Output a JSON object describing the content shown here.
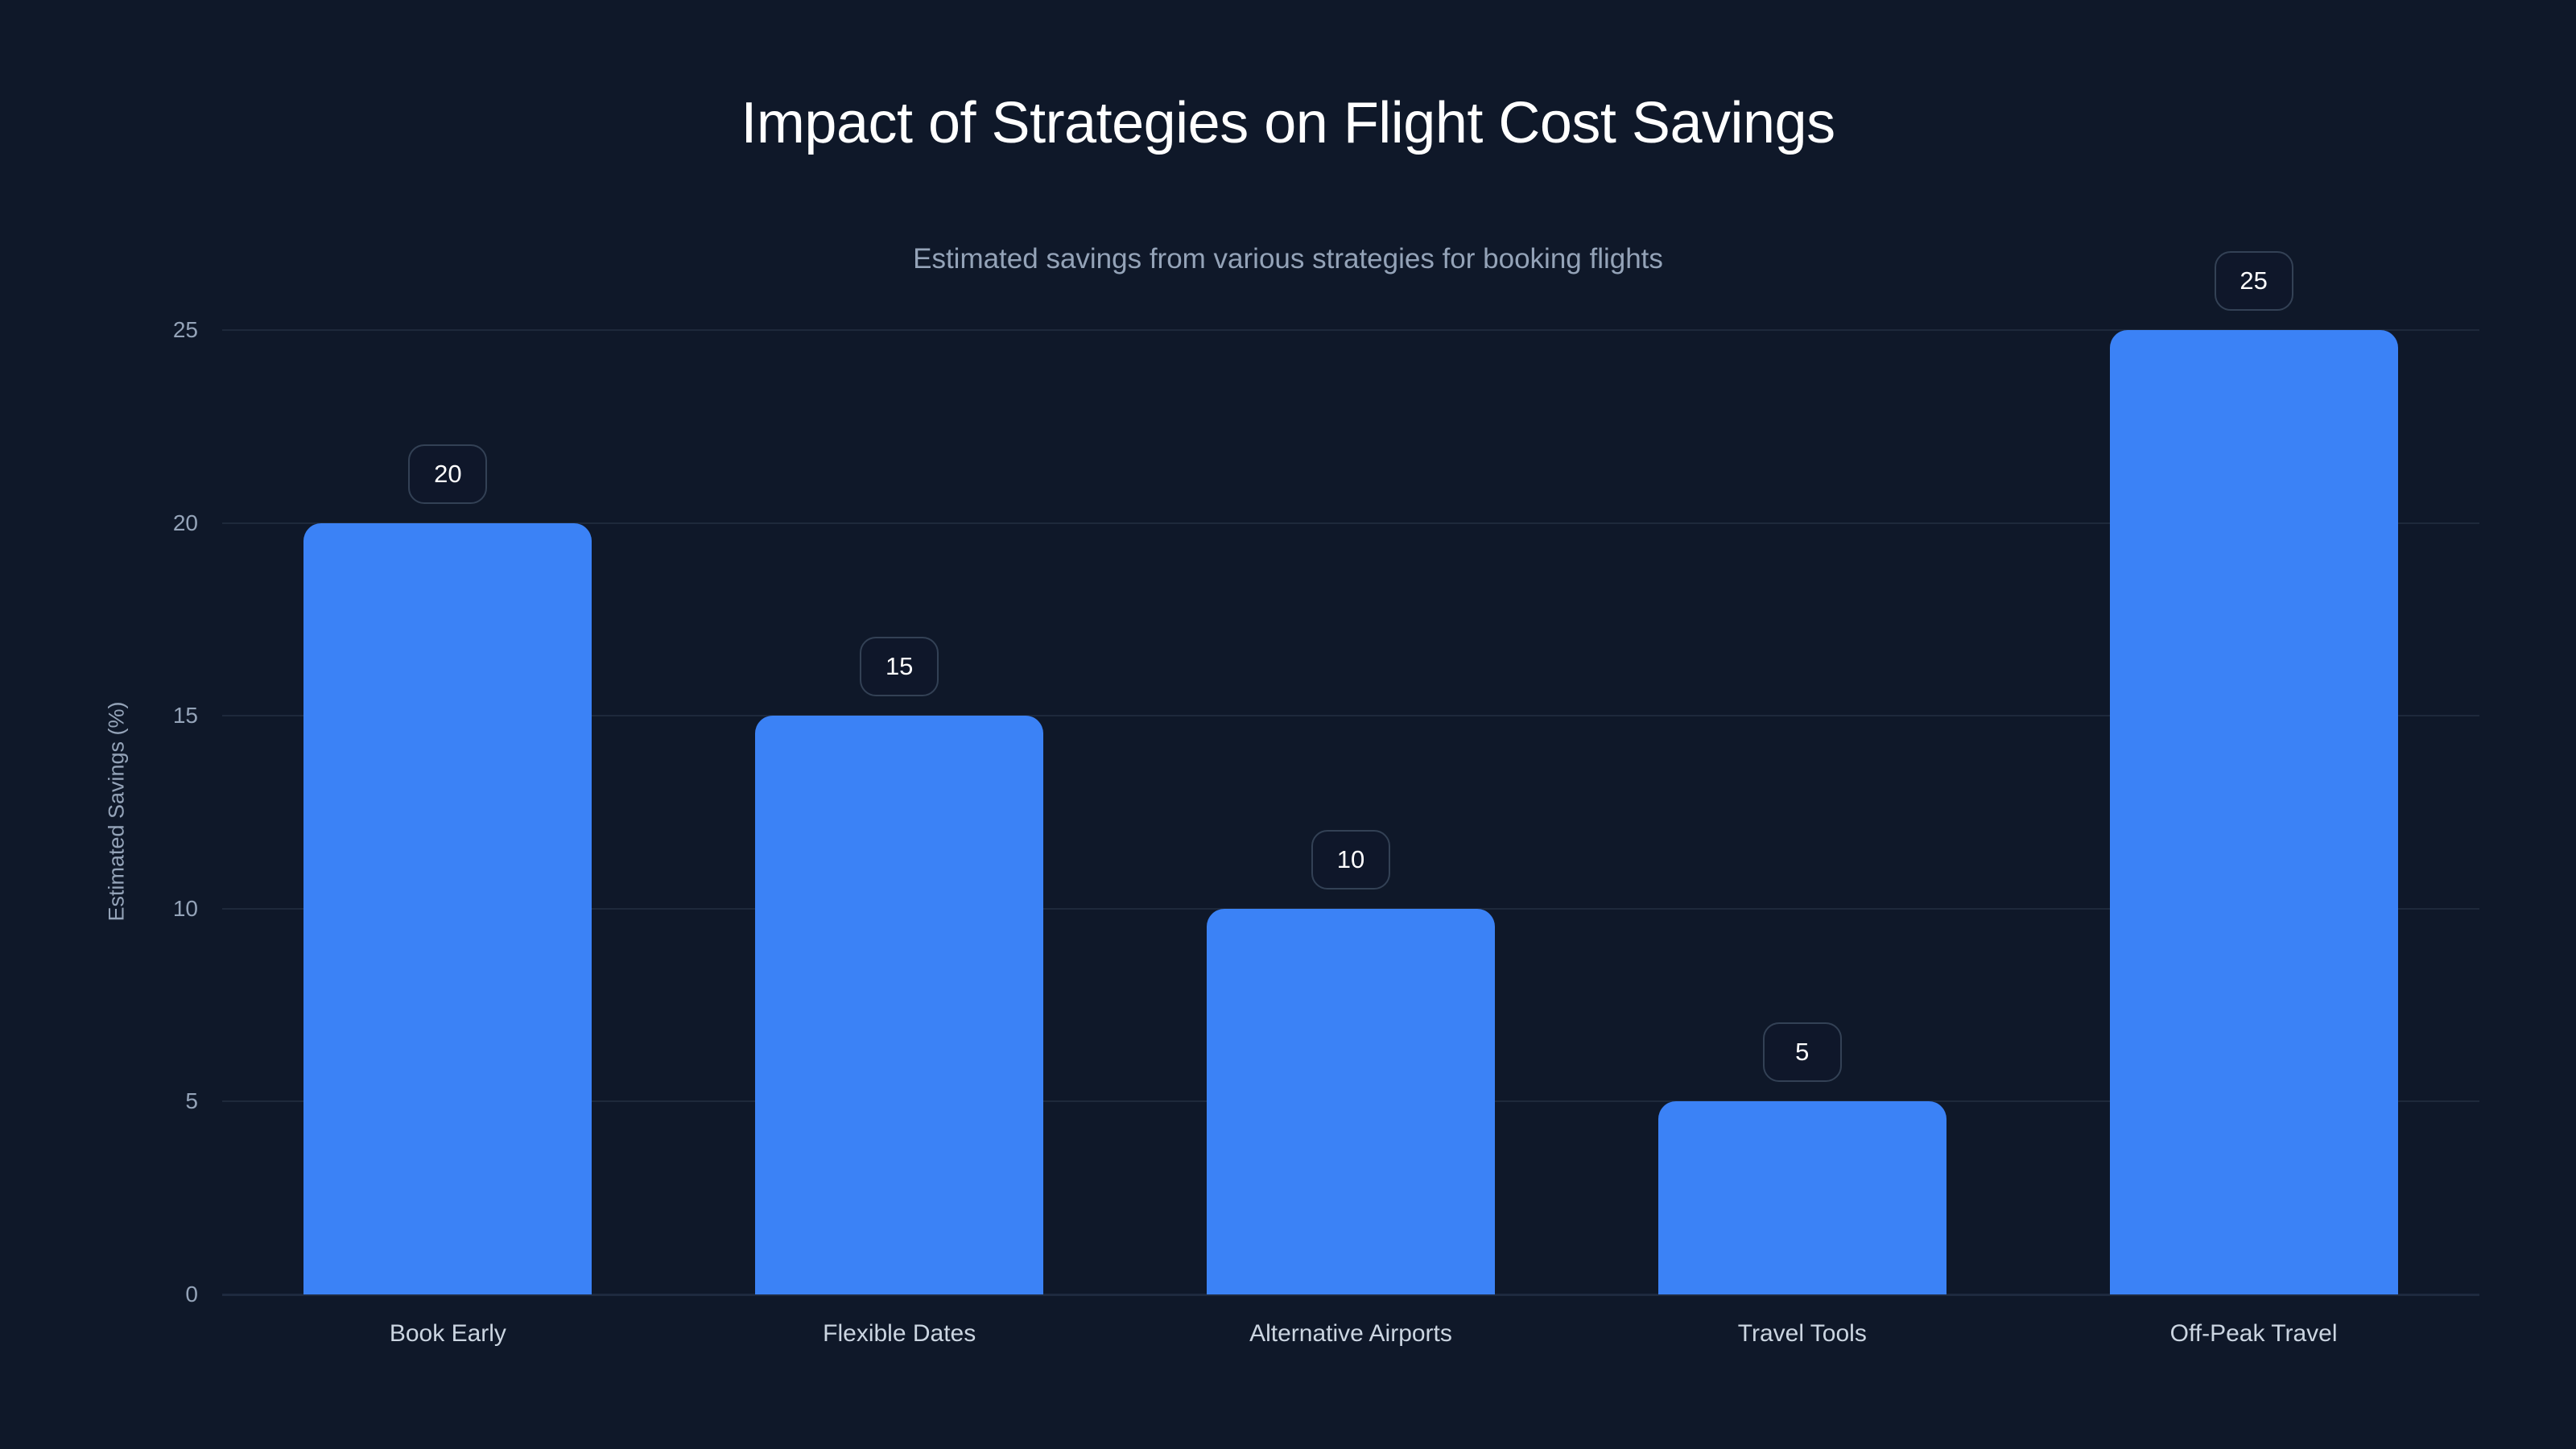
{
  "chart_data": {
    "type": "bar",
    "title": "Impact of Strategies on Flight Cost Savings",
    "subtitle": "Estimated savings from various strategies for booking flights",
    "xlabel": "",
    "ylabel": "Estimated Savings (%)",
    "categories": [
      "Book Early",
      "Flexible Dates",
      "Alternative Airports",
      "Travel Tools",
      "Off-Peak Travel"
    ],
    "values": [
      20,
      15,
      10,
      5,
      25
    ],
    "value_labels": [
      "20",
      "15",
      "10",
      "5",
      "25"
    ],
    "ylim": [
      0,
      25
    ],
    "yticks": [
      0,
      5,
      10,
      15,
      20,
      25
    ],
    "ytick_labels": [
      "0",
      "5",
      "10",
      "15",
      "20",
      "25"
    ],
    "grid": true,
    "legend": null,
    "colors": {
      "bar": "#3b82f6",
      "background": "#0f1829",
      "grid": "#1e293b",
      "title": "#ffffff",
      "subtitle": "#94a3b8",
      "badge_border": "#334155"
    }
  }
}
